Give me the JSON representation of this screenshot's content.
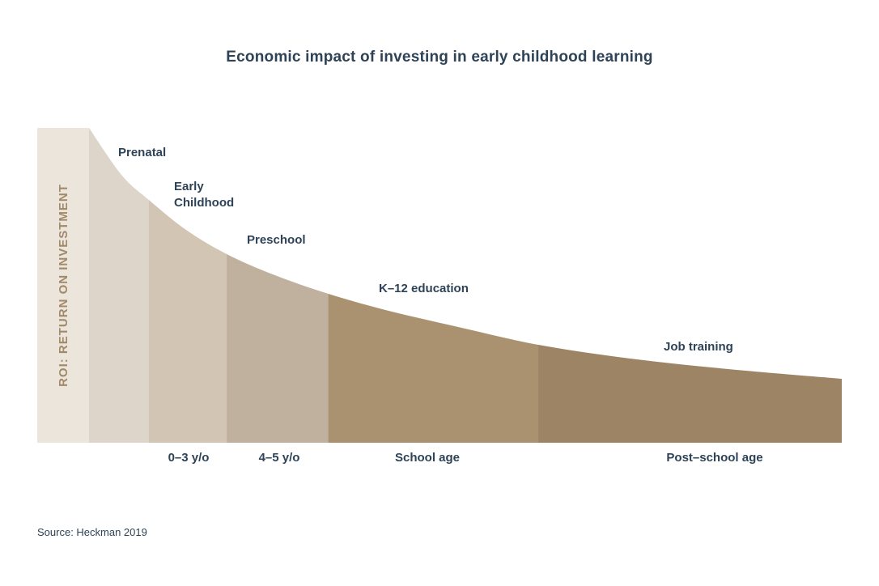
{
  "title": "Economic impact of investing in early childhood learning",
  "source": "Source: Heckman 2019",
  "colors": {
    "background": "#ffffff",
    "title_text": "#2e4357",
    "label_text": "#2e4357",
    "roi_band_fill": "#ebe5dc",
    "roi_band_text": "#a28a69"
  },
  "chart_data": {
    "type": "area",
    "title": "Economic impact of investing in early childhood learning",
    "ylabel": "ROI: RETURN ON INVESTMENT",
    "xlabel": "",
    "source": "Source: Heckman 2019",
    "legend": "none",
    "grid": false,
    "segments": [
      {
        "label": "Prenatal",
        "axis_label": "",
        "x0": 0.0,
        "x1": 0.0796,
        "color": "#ded5ca"
      },
      {
        "label": "Early\nChildhood",
        "axis_label": "0–3 y/o",
        "x0": 0.0796,
        "x1": 0.183,
        "color": "#d2c5b4"
      },
      {
        "label": "Preschool",
        "axis_label": "4–5 y/o",
        "x0": 0.183,
        "x1": 0.318,
        "color": "#c0b19e"
      },
      {
        "label": "K–12 education",
        "axis_label": "School age",
        "x0": 0.318,
        "x1": 0.597,
        "color": "#aa9270"
      },
      {
        "label": "Job training",
        "axis_label": "Post–school age",
        "x0": 0.597,
        "x1": 1.0,
        "color": "#9d8465"
      }
    ],
    "curve": [
      {
        "x": 0.0,
        "roi": 1.0
      },
      {
        "x": 0.043,
        "roi": 0.851
      },
      {
        "x": 0.0796,
        "roi": 0.771
      },
      {
        "x": 0.129,
        "roi": 0.676
      },
      {
        "x": 0.183,
        "roi": 0.599
      },
      {
        "x": 0.247,
        "roi": 0.532
      },
      {
        "x": 0.318,
        "roi": 0.473
      },
      {
        "x": 0.398,
        "roi": 0.419
      },
      {
        "x": 0.495,
        "roi": 0.365
      },
      {
        "x": 0.597,
        "roi": 0.311
      },
      {
        "x": 0.72,
        "roi": 0.267
      },
      {
        "x": 0.849,
        "roi": 0.234
      },
      {
        "x": 1.0,
        "roi": 0.203
      }
    ],
    "roi_axis_range": [
      "low",
      "high"
    ]
  }
}
